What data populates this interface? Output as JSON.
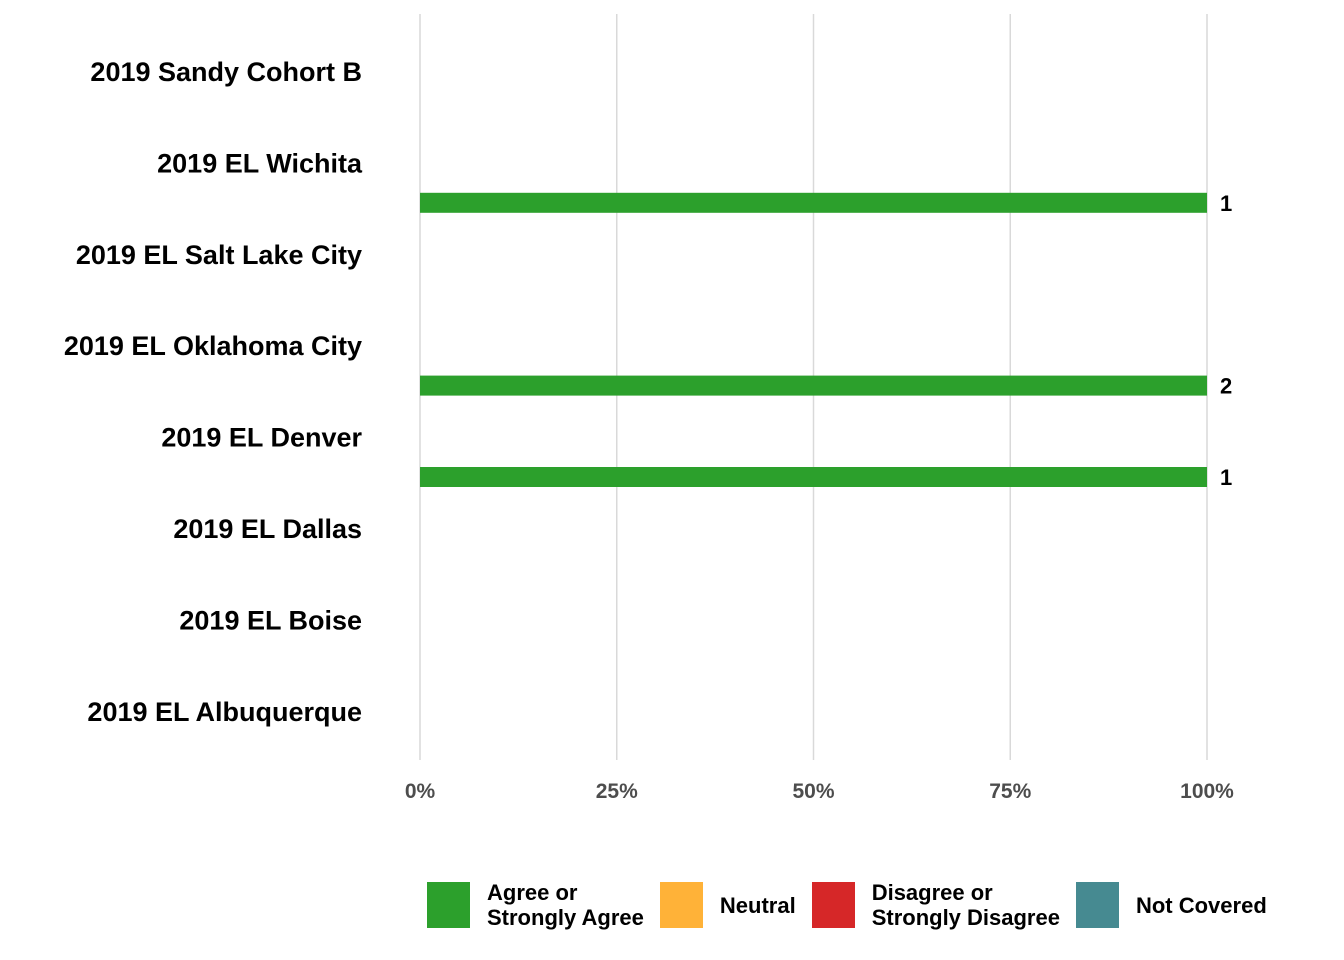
{
  "chart_data": {
    "type": "bar",
    "orientation": "horizontal",
    "stacked": true,
    "categories": [
      "2019 Sandy Cohort B",
      "2019 EL Wichita",
      "2019 EL Salt Lake City",
      "2019 EL Oklahoma City",
      "2019 EL Denver",
      "2019 EL Dallas",
      "2019 EL Boise",
      "2019 EL Albuquerque"
    ],
    "series": [
      {
        "name": "Agree or\nStrongly Agree",
        "color": "#2ca02c",
        "values": [
          0,
          0,
          100,
          0,
          100,
          100,
          0,
          0
        ],
        "counts": [
          "",
          "",
          "1",
          "",
          "2",
          "1",
          "",
          ""
        ]
      },
      {
        "name": "Neutral",
        "color": "#ffb238",
        "values": [
          0,
          0,
          0,
          0,
          0,
          0,
          0,
          0
        ]
      },
      {
        "name": "Disagree or\nStrongly Disagree",
        "color": "#d62728",
        "values": [
          0,
          0,
          0,
          0,
          0,
          0,
          0,
          0
        ]
      },
      {
        "name": "Not Covered",
        "color": "#468a91",
        "values": [
          0,
          0,
          0,
          0,
          0,
          0,
          0,
          0
        ]
      }
    ],
    "xlim": [
      0,
      100
    ],
    "xticks": [
      0,
      25,
      50,
      75,
      100
    ],
    "xtick_labels": [
      "0%",
      "25%",
      "50%",
      "75%",
      "100%"
    ],
    "grid": "vertical",
    "legend_position": "bottom"
  }
}
